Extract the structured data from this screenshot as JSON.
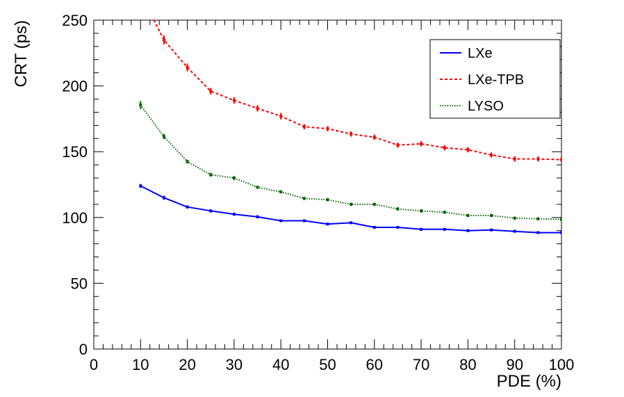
{
  "chart_data": {
    "type": "line",
    "xlabel": "PDE (%)",
    "ylabel": "CRT (ps)",
    "xlim": [
      0,
      100
    ],
    "ylim": [
      0,
      250
    ],
    "x_major_ticks": [
      0,
      10,
      20,
      30,
      40,
      50,
      60,
      70,
      80,
      90,
      100
    ],
    "y_major_ticks": [
      0,
      50,
      100,
      150,
      200,
      250
    ],
    "x_tick_labels": [
      "0",
      "10",
      "20",
      "30",
      "40",
      "50",
      "60",
      "70",
      "80",
      "90",
      "100"
    ],
    "y_tick_labels": [
      "0",
      "50",
      "100",
      "150",
      "200",
      "250"
    ],
    "grid": false,
    "legend_position": "top-right",
    "x": [
      10,
      15,
      20,
      25,
      30,
      35,
      40,
      45,
      50,
      55,
      60,
      65,
      70,
      75,
      80,
      85,
      90,
      95,
      100
    ],
    "series": [
      {
        "name": "LXe",
        "color": "#0000ff",
        "style": "solid",
        "values": [
          124,
          115,
          108,
          105,
          102.5,
          100.5,
          97.5,
          97.5,
          95,
          96,
          92.5,
          92.5,
          91,
          91,
          90,
          90.5,
          89.5,
          88.5,
          88.5
        ],
        "errors": [
          1.5,
          1.5,
          1.2,
          1.2,
          1.2,
          1.2,
          1.0,
          1.0,
          1.0,
          1.0,
          1.0,
          1.0,
          1.0,
          1.0,
          1.0,
          1.0,
          1.0,
          1.0,
          1.0
        ]
      },
      {
        "name": "LXe-TPB",
        "color": "#ff0000",
        "style": "dashed",
        "values": [
          270,
          235,
          214,
          196,
          189,
          183,
          177,
          169,
          167.5,
          163.5,
          161,
          155,
          156,
          153,
          151.5,
          147.5,
          144.5,
          144.5,
          144
        ],
        "errors": [
          4,
          3.5,
          3,
          2.5,
          2.5,
          2.5,
          2.5,
          2,
          2,
          2,
          2,
          2,
          2,
          2,
          2,
          2,
          2,
          2,
          2
        ]
      },
      {
        "name": "LYSO",
        "color": "#006400",
        "style": "dotted",
        "values": [
          185.5,
          161.5,
          142.5,
          132.5,
          130,
          123,
          119.5,
          114.5,
          113.5,
          110,
          110,
          106.5,
          105,
          104,
          101.5,
          101.5,
          99.5,
          99,
          98.5
        ],
        "errors": [
          3,
          2,
          1.5,
          1.5,
          1.5,
          1.2,
          1.2,
          1.2,
          1.2,
          1.2,
          1.2,
          1.2,
          1.2,
          1.2,
          1.2,
          1.2,
          1.2,
          1.2,
          1.2
        ]
      }
    ]
  }
}
